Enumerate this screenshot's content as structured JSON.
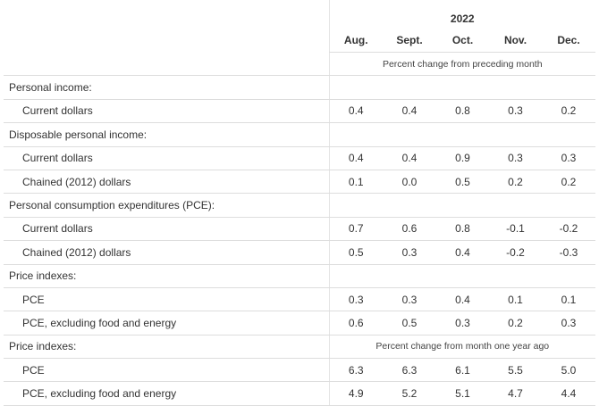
{
  "header": {
    "year": "2022",
    "columns": [
      "Aug.",
      "Sept.",
      "Oct.",
      "Nov.",
      "Dec."
    ],
    "note": "Percent change from preceding month"
  },
  "sections": [
    {
      "title": "Personal income:",
      "rows": [
        {
          "label": "Current dollars",
          "values": [
            "0.4",
            "0.4",
            "0.8",
            "0.3",
            "0.2"
          ]
        }
      ]
    },
    {
      "title": "Disposable personal income:",
      "rows": [
        {
          "label": "Current dollars",
          "values": [
            "0.4",
            "0.4",
            "0.9",
            "0.3",
            "0.3"
          ]
        },
        {
          "label": "Chained (2012) dollars",
          "values": [
            "0.1",
            "0.0",
            "0.5",
            "0.2",
            "0.2"
          ]
        }
      ]
    },
    {
      "title": "Personal consumption expenditures (PCE):",
      "rows": [
        {
          "label": "Current dollars",
          "values": [
            "0.7",
            "0.6",
            "0.8",
            "-0.1",
            "-0.2"
          ]
        },
        {
          "label": "Chained (2012) dollars",
          "values": [
            "0.5",
            "0.3",
            "0.4",
            "-0.2",
            "-0.3"
          ]
        }
      ]
    },
    {
      "title": "Price indexes:",
      "rows": [
        {
          "label": "PCE",
          "values": [
            "0.3",
            "0.3",
            "0.4",
            "0.1",
            "0.1"
          ]
        },
        {
          "label": "PCE, excluding food and energy",
          "values": [
            "0.6",
            "0.5",
            "0.3",
            "0.2",
            "0.3"
          ]
        }
      ]
    },
    {
      "title": "Price indexes:",
      "note": "Percent change from month one year ago",
      "rows": [
        {
          "label": "PCE",
          "values": [
            "6.3",
            "6.3",
            "6.1",
            "5.5",
            "5.0"
          ]
        },
        {
          "label": "PCE, excluding food and energy",
          "values": [
            "4.9",
            "5.2",
            "5.1",
            "4.7",
            "4.4"
          ]
        }
      ]
    }
  ]
}
